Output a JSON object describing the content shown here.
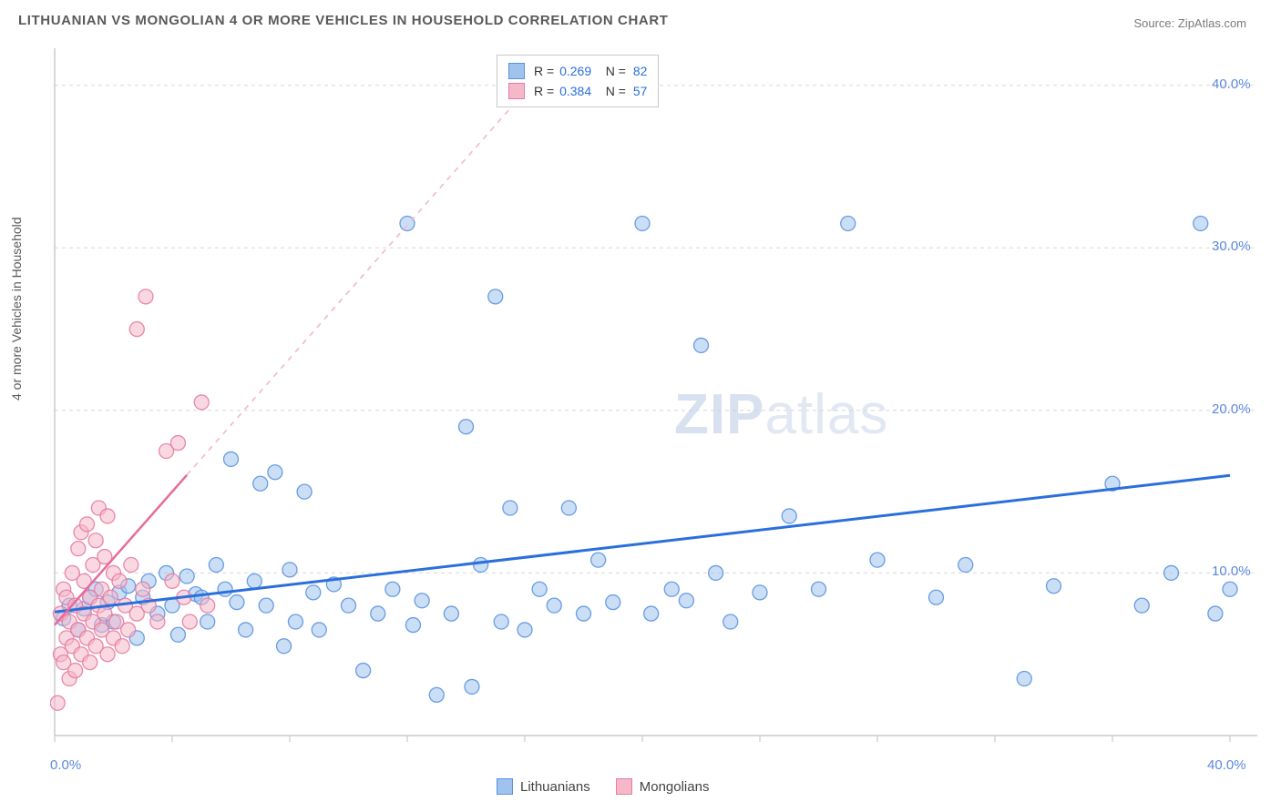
{
  "title": "LITHUANIAN VS MONGOLIAN 4 OR MORE VEHICLES IN HOUSEHOLD CORRELATION CHART",
  "source_label": "Source: ZipAtlas.com",
  "y_axis_label": "4 or more Vehicles in Household",
  "watermark_bold": "ZIP",
  "watermark_rest": "atlas",
  "chart": {
    "type": "scatter",
    "background_color": "#ffffff",
    "grid_color": "#d8d8d8",
    "axis_color": "#bfbfbf",
    "xlim": [
      0,
      40
    ],
    "ylim": [
      0,
      42
    ],
    "xtick_labels": [
      "0.0%",
      "40.0%"
    ],
    "xtick_positions": [
      0,
      40
    ],
    "xtick_minor_step": 4,
    "ytick_labels": [
      "10.0%",
      "20.0%",
      "30.0%",
      "40.0%"
    ],
    "ytick_positions": [
      10,
      20,
      30,
      40
    ],
    "marker_radius": 8,
    "marker_opacity": 0.55,
    "marker_stroke_opacity": 0.9
  },
  "series": [
    {
      "name": "Lithuanians",
      "color_fill": "#9fc2ef",
      "color_stroke": "#5b93dd",
      "r_value": "0.269",
      "n_value": "82",
      "trend": {
        "slope": 0.21,
        "intercept": 7.6,
        "x0": 0,
        "x1_solid": 40,
        "color": "#2a6fdb",
        "width": 3
      },
      "points": [
        [
          0.3,
          7.2
        ],
        [
          0.5,
          8.0
        ],
        [
          0.8,
          6.5
        ],
        [
          1.0,
          7.8
        ],
        [
          1.2,
          8.5
        ],
        [
          1.4,
          9.0
        ],
        [
          1.6,
          6.8
        ],
        [
          1.8,
          8.2
        ],
        [
          2.0,
          7.0
        ],
        [
          2.2,
          8.8
        ],
        [
          2.5,
          9.2
        ],
        [
          2.8,
          6.0
        ],
        [
          3.0,
          8.5
        ],
        [
          3.2,
          9.5
        ],
        [
          3.5,
          7.5
        ],
        [
          3.8,
          10.0
        ],
        [
          4.0,
          8.0
        ],
        [
          4.2,
          6.2
        ],
        [
          4.5,
          9.8
        ],
        [
          4.8,
          8.7
        ],
        [
          5.0,
          8.5
        ],
        [
          5.2,
          7.0
        ],
        [
          5.5,
          10.5
        ],
        [
          5.8,
          9.0
        ],
        [
          6.0,
          17.0
        ],
        [
          6.2,
          8.2
        ],
        [
          6.5,
          6.5
        ],
        [
          6.8,
          9.5
        ],
        [
          7.0,
          15.5
        ],
        [
          7.2,
          8.0
        ],
        [
          7.5,
          16.2
        ],
        [
          7.8,
          5.5
        ],
        [
          8.0,
          10.2
        ],
        [
          8.2,
          7.0
        ],
        [
          8.5,
          15.0
        ],
        [
          8.8,
          8.8
        ],
        [
          9.0,
          6.5
        ],
        [
          9.5,
          9.3
        ],
        [
          10.0,
          8.0
        ],
        [
          10.5,
          4.0
        ],
        [
          11.0,
          7.5
        ],
        [
          11.5,
          9.0
        ],
        [
          12.0,
          31.5
        ],
        [
          12.2,
          6.8
        ],
        [
          12.5,
          8.3
        ],
        [
          13.0,
          2.5
        ],
        [
          13.5,
          7.5
        ],
        [
          14.0,
          19.0
        ],
        [
          14.2,
          3.0
        ],
        [
          14.5,
          10.5
        ],
        [
          15.0,
          27.0
        ],
        [
          15.2,
          7.0
        ],
        [
          15.5,
          14.0
        ],
        [
          16.0,
          6.5
        ],
        [
          16.5,
          9.0
        ],
        [
          17.0,
          8.0
        ],
        [
          17.5,
          14.0
        ],
        [
          18.0,
          7.5
        ],
        [
          18.5,
          10.8
        ],
        [
          19.0,
          8.2
        ],
        [
          20.0,
          31.5
        ],
        [
          20.3,
          7.5
        ],
        [
          21.0,
          9.0
        ],
        [
          21.5,
          8.3
        ],
        [
          22.0,
          24.0
        ],
        [
          22.5,
          10.0
        ],
        [
          23.0,
          7.0
        ],
        [
          24.0,
          8.8
        ],
        [
          25.0,
          13.5
        ],
        [
          26.0,
          9.0
        ],
        [
          27.0,
          31.5
        ],
        [
          28.0,
          10.8
        ],
        [
          30.0,
          8.5
        ],
        [
          31.0,
          10.5
        ],
        [
          33.0,
          3.5
        ],
        [
          34.0,
          9.2
        ],
        [
          36.0,
          15.5
        ],
        [
          37.0,
          8.0
        ],
        [
          38.0,
          10.0
        ],
        [
          39.0,
          31.5
        ],
        [
          39.5,
          7.5
        ],
        [
          40.0,
          9.0
        ]
      ]
    },
    {
      "name": "Mongolians",
      "color_fill": "#f5b8c9",
      "color_stroke": "#e77ba1",
      "r_value": "0.384",
      "n_value": "57",
      "trend": {
        "slope": 2.05,
        "intercept": 6.8,
        "x0": 0,
        "x1_solid": 4.5,
        "x1_dash": 16,
        "color": "#e86a9a",
        "width": 2.5,
        "dash_color": "#f3bccf"
      },
      "points": [
        [
          0.1,
          2.0
        ],
        [
          0.2,
          5.0
        ],
        [
          0.2,
          7.5
        ],
        [
          0.3,
          4.5
        ],
        [
          0.3,
          9.0
        ],
        [
          0.4,
          6.0
        ],
        [
          0.4,
          8.5
        ],
        [
          0.5,
          3.5
        ],
        [
          0.5,
          7.0
        ],
        [
          0.6,
          5.5
        ],
        [
          0.6,
          10.0
        ],
        [
          0.7,
          4.0
        ],
        [
          0.7,
          8.0
        ],
        [
          0.8,
          6.5
        ],
        [
          0.8,
          11.5
        ],
        [
          0.9,
          5.0
        ],
        [
          0.9,
          12.5
        ],
        [
          1.0,
          7.5
        ],
        [
          1.0,
          9.5
        ],
        [
          1.1,
          6.0
        ],
        [
          1.1,
          13.0
        ],
        [
          1.2,
          4.5
        ],
        [
          1.2,
          8.5
        ],
        [
          1.3,
          7.0
        ],
        [
          1.3,
          10.5
        ],
        [
          1.4,
          5.5
        ],
        [
          1.4,
          12.0
        ],
        [
          1.5,
          8.0
        ],
        [
          1.5,
          14.0
        ],
        [
          1.6,
          6.5
        ],
        [
          1.6,
          9.0
        ],
        [
          1.7,
          7.5
        ],
        [
          1.7,
          11.0
        ],
        [
          1.8,
          5.0
        ],
        [
          1.8,
          13.5
        ],
        [
          1.9,
          8.5
        ],
        [
          2.0,
          6.0
        ],
        [
          2.0,
          10.0
        ],
        [
          2.1,
          7.0
        ],
        [
          2.2,
          9.5
        ],
        [
          2.3,
          5.5
        ],
        [
          2.4,
          8.0
        ],
        [
          2.5,
          6.5
        ],
        [
          2.6,
          10.5
        ],
        [
          2.8,
          7.5
        ],
        [
          2.8,
          25.0
        ],
        [
          3.0,
          9.0
        ],
        [
          3.1,
          27.0
        ],
        [
          3.2,
          8.0
        ],
        [
          3.5,
          7.0
        ],
        [
          3.8,
          17.5
        ],
        [
          4.0,
          9.5
        ],
        [
          4.2,
          18.0
        ],
        [
          4.4,
          8.5
        ],
        [
          4.6,
          7.0
        ],
        [
          5.0,
          20.5
        ],
        [
          5.2,
          8.0
        ]
      ]
    }
  ],
  "legend_stats": {
    "r_label": "R =",
    "n_label": "N ="
  },
  "bottom_legend": [
    {
      "label": "Lithuanians",
      "fill": "#9fc2ef",
      "stroke": "#5b93dd"
    },
    {
      "label": "Mongolians",
      "fill": "#f5b8c9",
      "stroke": "#e77ba1"
    }
  ]
}
